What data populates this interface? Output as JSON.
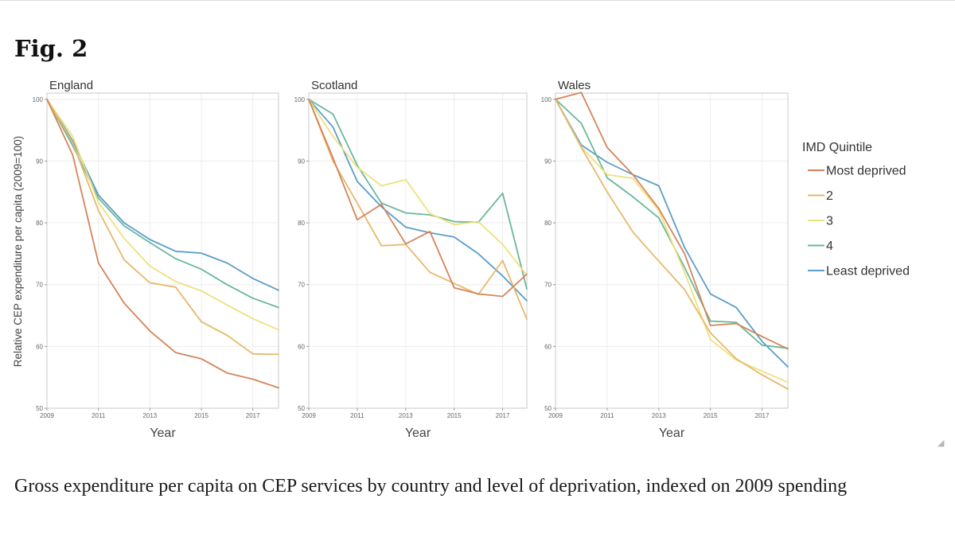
{
  "figure": {
    "label": "Fig. 2",
    "caption": "Gross expenditure per capita on CEP services by country and level of deprivation, indexed on 2009 spending"
  },
  "chart_data": {
    "type": "line",
    "ylabel": "Relative CEP expenditure per capita (2009=100)",
    "xlabel": "Year",
    "x": [
      2009,
      2010,
      2011,
      2012,
      2013,
      2014,
      2015,
      2016,
      2017,
      2018
    ],
    "xticks": [
      2009,
      2011,
      2013,
      2015,
      2017
    ],
    "yticks": [
      50,
      60,
      70,
      80,
      90,
      100
    ],
    "ylim": [
      50,
      101
    ],
    "xlim": [
      2009,
      2018
    ],
    "grid": true,
    "legend": {
      "title": "IMD Quintile",
      "placement": "right",
      "entries": [
        "Most deprived",
        "2",
        "3",
        "4",
        "Least deprived"
      ]
    },
    "colors": [
      "#d4855a",
      "#e6b96a",
      "#efe07e",
      "#6ab79a",
      "#5b9ec9"
    ],
    "panels": [
      {
        "title": "England",
        "series": [
          {
            "name": "Most deprived",
            "values": [
              100,
              91,
              73.5,
              67,
              62.5,
              59,
              58,
              55.7,
              54.7,
              53.3
            ]
          },
          {
            "name": "2",
            "values": [
              100,
              93,
              82,
              74,
              70.3,
              69.6,
              64,
              61.8,
              58.8,
              58.7
            ]
          },
          {
            "name": "3",
            "values": [
              100,
              94,
              83.3,
              77.5,
              73,
              70.5,
              69,
              66.7,
              64.5,
              62.7
            ]
          },
          {
            "name": "4",
            "values": [
              100,
              92.5,
              84,
              79.5,
              76.8,
              74.2,
              72.5,
              70,
              67.8,
              66.3
            ]
          },
          {
            "name": "Least deprived",
            "values": [
              100,
              93.3,
              84.5,
              80,
              77.3,
              75.4,
              75.1,
              73.5,
              71,
              69.1
            ]
          }
        ]
      },
      {
        "title": "Scotland",
        "series": [
          {
            "name": "Most deprived",
            "values": [
              100,
              90.5,
              80.5,
              83,
              76.6,
              78.6,
              69.5,
              68.5,
              68.1,
              71.7
            ]
          },
          {
            "name": "2",
            "values": [
              100,
              90,
              83.2,
              76.3,
              76.5,
              72,
              70.2,
              68.4,
              73.9,
              64.4
            ]
          },
          {
            "name": "3",
            "values": [
              100,
              94,
              89,
              86,
              87,
              81.5,
              79.7,
              80.2,
              76.5,
              71.5
            ]
          },
          {
            "name": "4",
            "values": [
              100,
              97.6,
              89.3,
              83.2,
              81.6,
              81.3,
              80.2,
              80.1,
              84.8,
              69.3
            ]
          },
          {
            "name": "Least deprived",
            "values": [
              100,
              95.5,
              86.7,
              82.6,
              79.3,
              78.4,
              77.7,
              75,
              71.4,
              67.4
            ]
          }
        ]
      },
      {
        "title": "Wales",
        "series": [
          {
            "name": "Most deprived",
            "values": [
              100,
              101.1,
              92.2,
              87.8,
              82.3,
              75,
              63.4,
              63.7,
              61.6,
              59.6
            ]
          },
          {
            "name": "2",
            "values": [
              100,
              92.2,
              85,
              78.5,
              73.8,
              69.2,
              62.2,
              58,
              55.4,
              53.1
            ]
          },
          {
            "name": "3",
            "values": [
              100,
              92.3,
              87.8,
              87.2,
              82,
              72,
              61.1,
              57.8,
              56,
              54.2
            ]
          },
          {
            "name": "4",
            "values": [
              100,
              96.1,
              87.3,
              84.2,
              80.8,
              72.8,
              64.1,
              63.9,
              60.2,
              59.7
            ]
          },
          {
            "name": "Least deprived",
            "values": [
              100,
              92.6,
              89.8,
              87.8,
              86,
              76,
              68.5,
              66.3,
              60.8,
              56.7
            ]
          }
        ]
      }
    ]
  }
}
